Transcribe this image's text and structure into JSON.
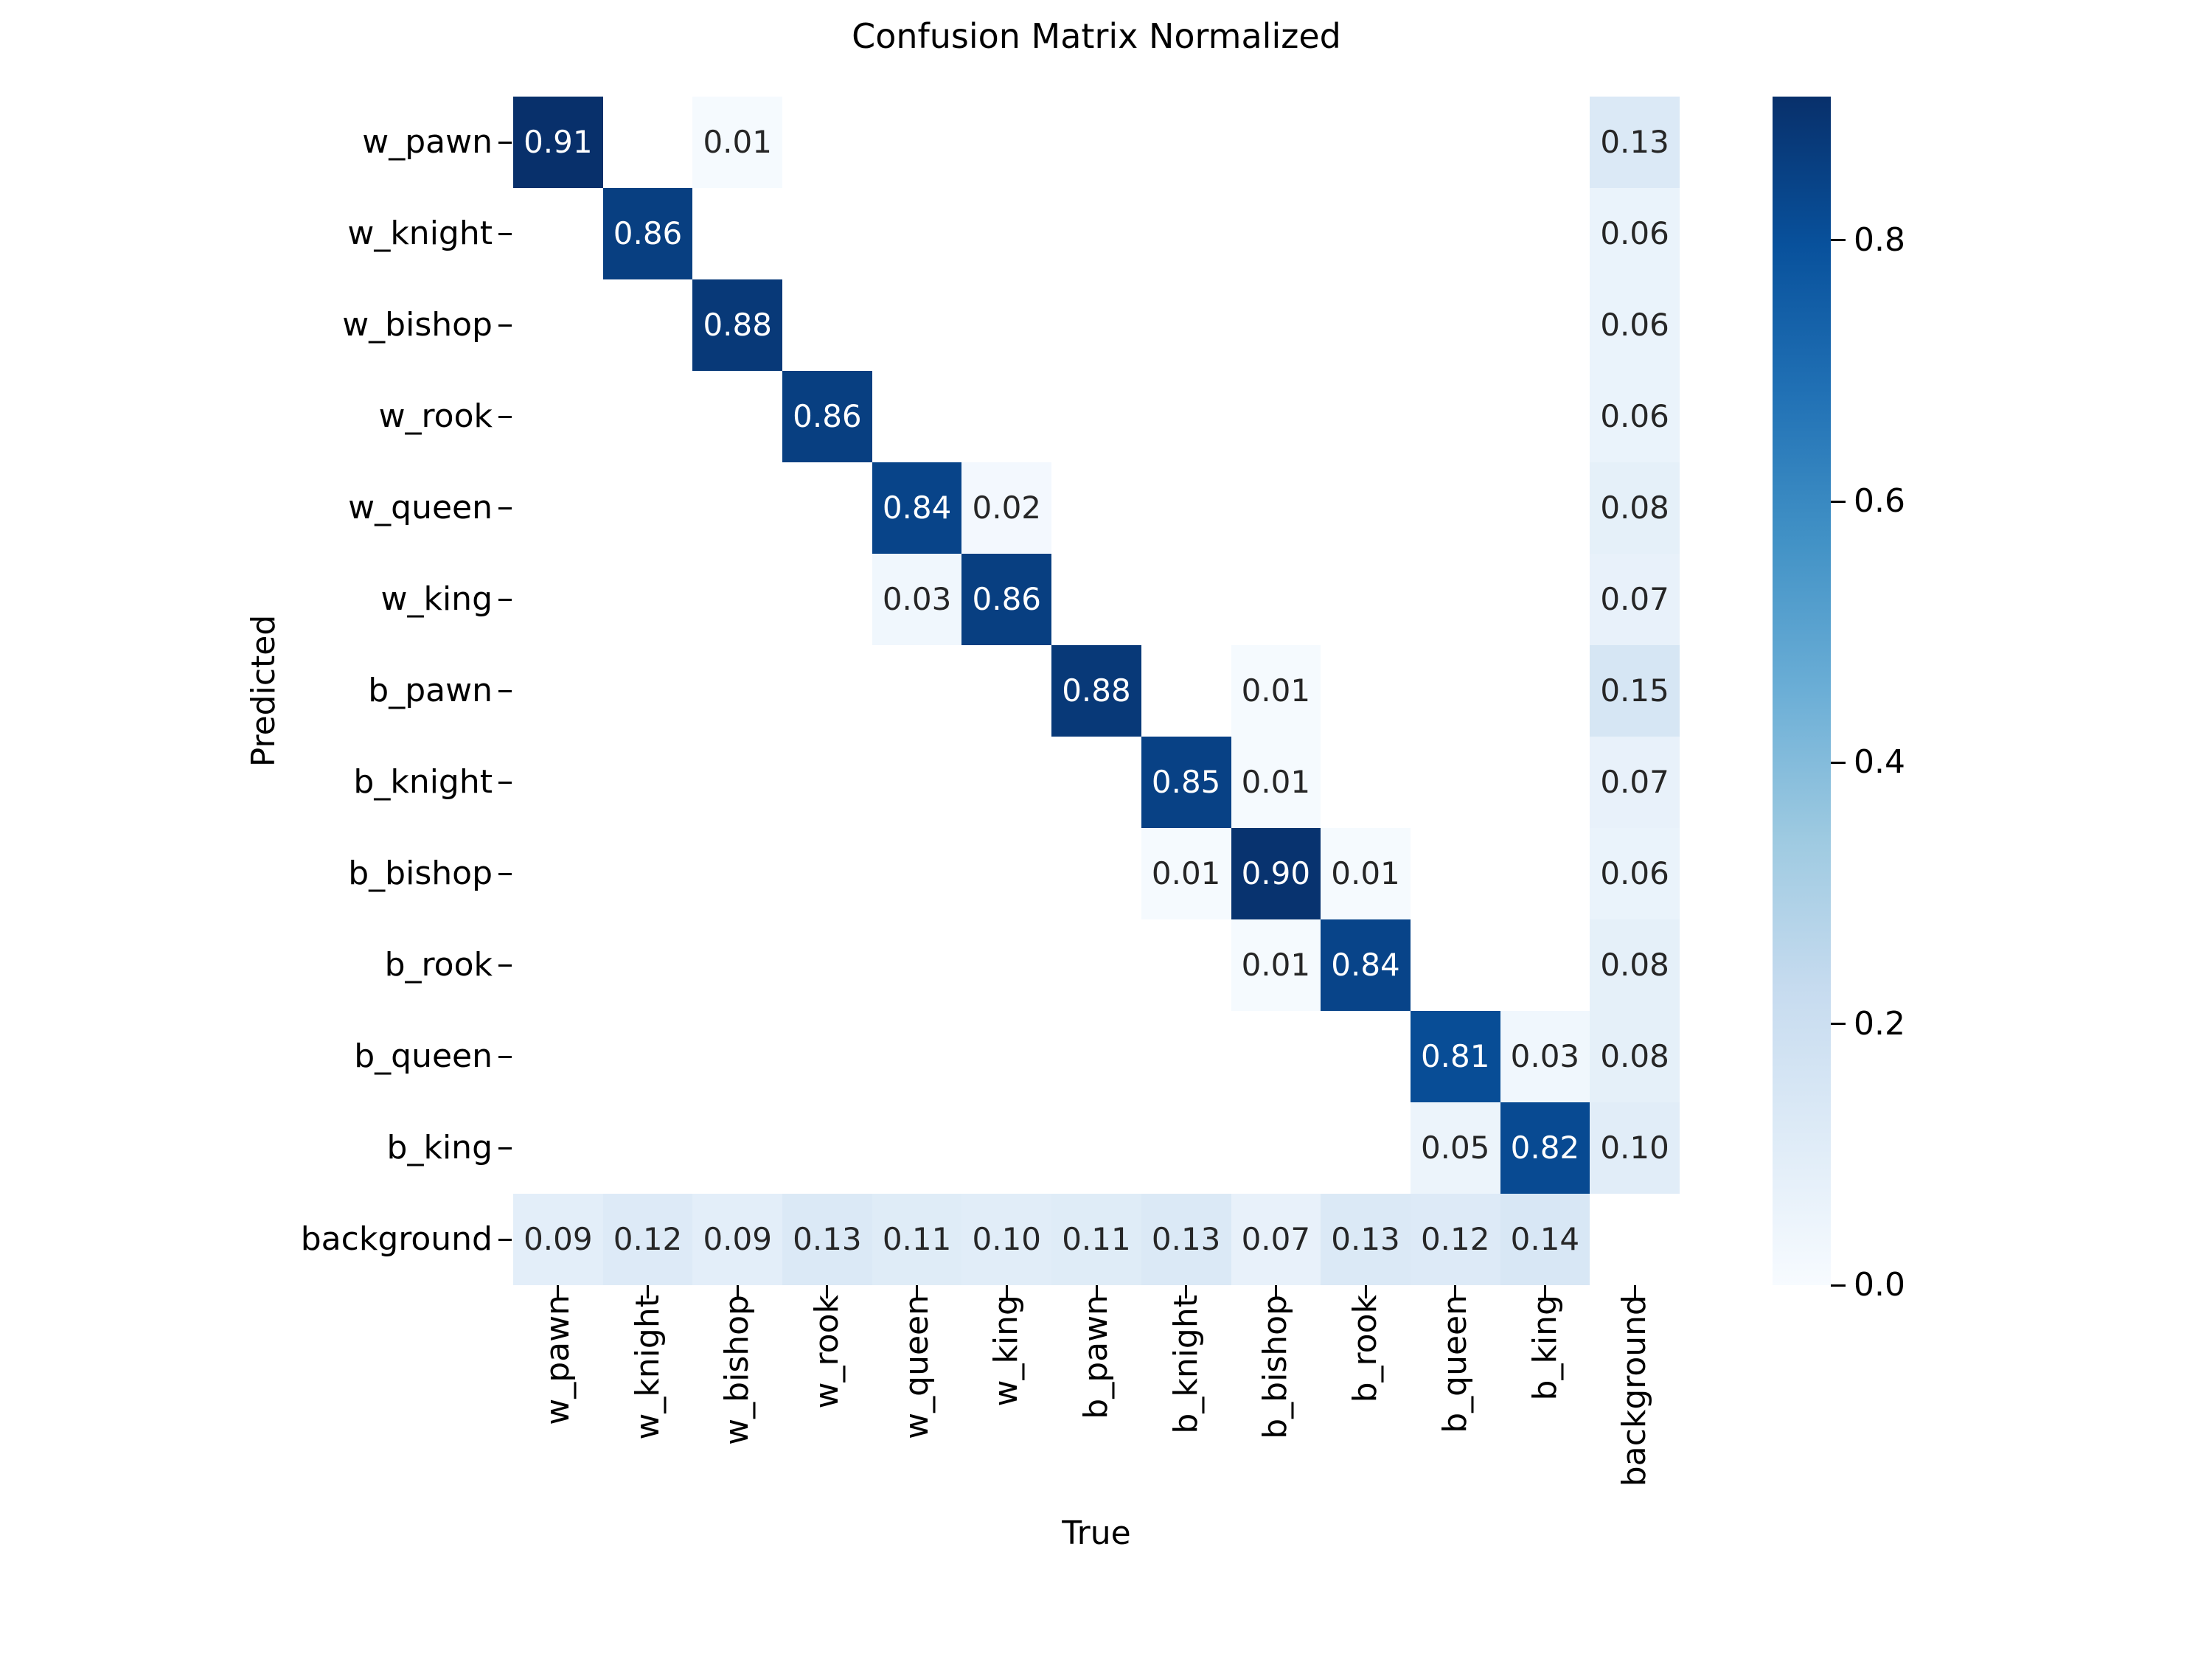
{
  "chart_data": {
    "type": "heatmap",
    "title": "Confusion Matrix Normalized",
    "xlabel": "True",
    "ylabel": "Predicted",
    "x_categories": [
      "w_pawn",
      "w_knight",
      "w_bishop",
      "w_rook",
      "w_queen",
      "w_king",
      "b_pawn",
      "b_knight",
      "b_bishop",
      "b_rook",
      "b_queen",
      "b_king",
      "background"
    ],
    "y_categories": [
      "w_pawn",
      "w_knight",
      "w_bishop",
      "w_rook",
      "w_queen",
      "w_king",
      "b_pawn",
      "b_knight",
      "b_bishop",
      "b_rook",
      "b_queen",
      "b_king",
      "background"
    ],
    "matrix": [
      [
        0.91,
        null,
        0.01,
        null,
        null,
        null,
        null,
        null,
        null,
        null,
        null,
        null,
        0.13
      ],
      [
        null,
        0.86,
        null,
        null,
        null,
        null,
        null,
        null,
        null,
        null,
        null,
        null,
        0.06
      ],
      [
        null,
        null,
        0.88,
        null,
        null,
        null,
        null,
        null,
        null,
        null,
        null,
        null,
        0.06
      ],
      [
        null,
        null,
        null,
        0.86,
        null,
        null,
        null,
        null,
        null,
        null,
        null,
        null,
        0.06
      ],
      [
        null,
        null,
        null,
        null,
        0.84,
        0.02,
        null,
        null,
        null,
        null,
        null,
        null,
        0.08
      ],
      [
        null,
        null,
        null,
        null,
        0.03,
        0.86,
        null,
        null,
        null,
        null,
        null,
        null,
        0.07
      ],
      [
        null,
        null,
        null,
        null,
        null,
        null,
        0.88,
        null,
        0.01,
        null,
        null,
        null,
        0.15
      ],
      [
        null,
        null,
        null,
        null,
        null,
        null,
        null,
        0.85,
        0.01,
        null,
        null,
        null,
        0.07
      ],
      [
        null,
        null,
        null,
        null,
        null,
        null,
        null,
        0.01,
        0.9,
        0.01,
        null,
        null,
        0.06
      ],
      [
        null,
        null,
        null,
        null,
        null,
        null,
        null,
        null,
        0.01,
        0.84,
        null,
        null,
        0.08
      ],
      [
        null,
        null,
        null,
        null,
        null,
        null,
        null,
        null,
        null,
        null,
        0.81,
        0.03,
        0.08
      ],
      [
        null,
        null,
        null,
        null,
        null,
        null,
        null,
        null,
        null,
        null,
        0.05,
        0.82,
        0.1
      ],
      [
        0.09,
        0.12,
        0.09,
        0.13,
        0.11,
        0.1,
        0.11,
        0.13,
        0.07,
        0.13,
        0.12,
        0.14,
        null
      ]
    ],
    "annotation_decimals": 2,
    "colormap": {
      "name": "Blues",
      "vmin": 0.0,
      "vmax": 0.91,
      "anchors": [
        "#f7fbff",
        "#deebf7",
        "#c6dbef",
        "#9ecae1",
        "#6baed6",
        "#4292c6",
        "#2171b5",
        "#08519c",
        "#08306b"
      ],
      "empty_cell_color": "#ffffff",
      "annotation_dark": "#262626",
      "annotation_light": "#ffffff"
    },
    "colorbar": {
      "ticks": [
        0.8,
        0.6,
        0.4,
        0.2,
        0.0
      ],
      "tick_labels": [
        "0.8",
        "0.6",
        "0.4",
        "0.2",
        "0.0"
      ]
    }
  }
}
